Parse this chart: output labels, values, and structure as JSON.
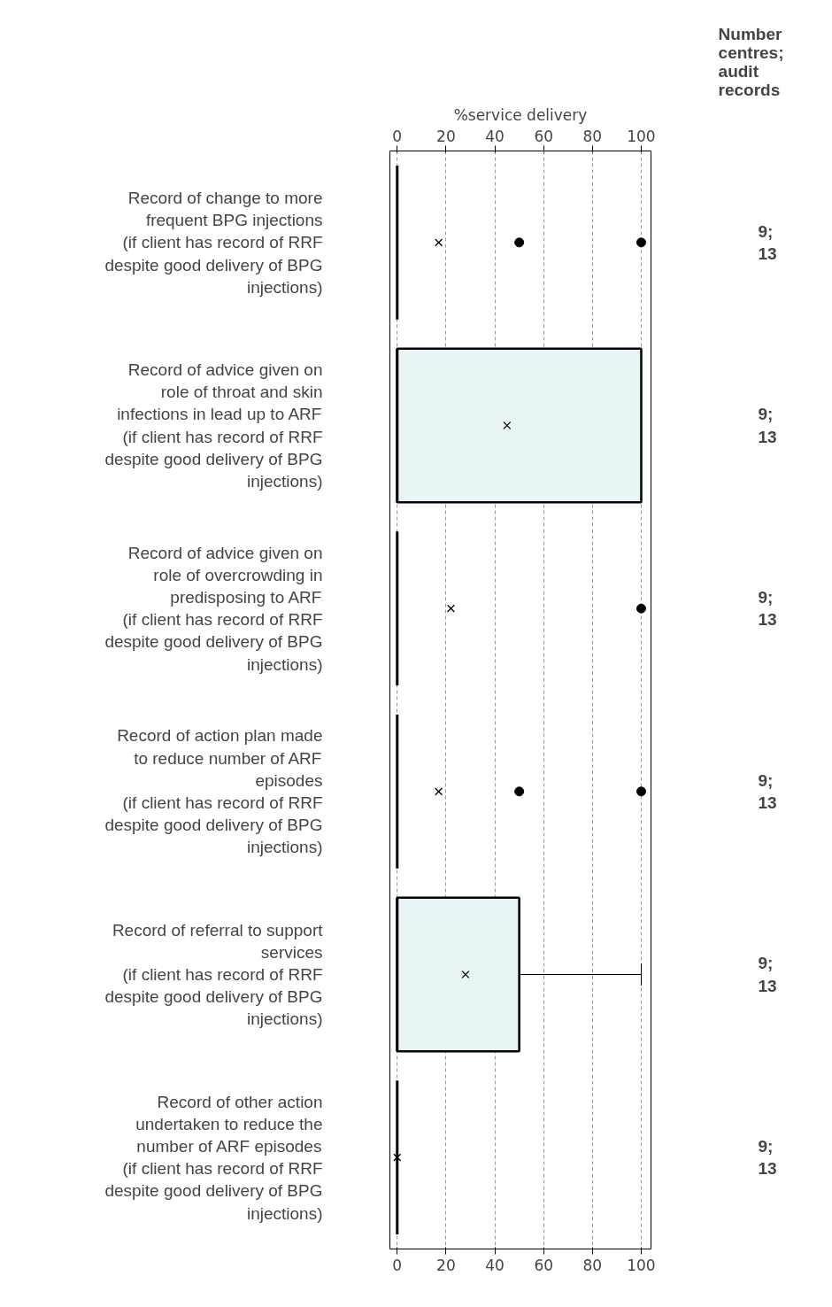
{
  "chart_data": {
    "type": "box",
    "orientation": "horizontal",
    "x2label": "%service delivery",
    "categories": [
      "Record of change to more\nfrequent BPG injections\n(if client has record of RRF\ndespite good delivery of BPG\ninjections)",
      "Record of advice given on\nrole of throat and skin\ninfections in lead up to ARF\n(if client has record of RRF\ndespite good delivery of BPG\ninjections)",
      "Record of advice given on\nrole of overcrowding in\npredisposing to ARF\n(if client has record of RRF\ndespite good delivery of BPG\ninjections)",
      "Record of action plan made\nto reduce number of ARF\nepisodes\n(if client has record of RRF\ndespite good delivery of BPG\ninjections)",
      "Record of referral to support\nservices\n(if client has record of RRF\ndespite good delivery of BPG\ninjections)",
      "Record of other action\nundertaken to reduce the\nnumber of ARF episodes\n(if client has record of RRF\ndespite good delivery of BPG\ninjections)"
    ],
    "boxes": [
      {
        "low": 0,
        "q1": 0,
        "median": 0,
        "q3": 0,
        "high": 0,
        "mean": 17,
        "outliers": [
          50,
          100
        ]
      },
      {
        "low": 0,
        "q1": 0,
        "median": 0,
        "q3": 100,
        "high": 100,
        "mean": 45
      },
      {
        "low": 0,
        "q1": 0,
        "median": 0,
        "q3": 0,
        "high": 0,
        "mean": 22,
        "outliers": [
          100
        ]
      },
      {
        "low": 0,
        "q1": 0,
        "median": 0,
        "q3": 0,
        "high": 0,
        "mean": 17,
        "outliers": [
          50,
          100
        ]
      },
      {
        "low": 0,
        "q1": 0,
        "median": 0,
        "q3": 50,
        "high": 100,
        "mean": 28
      },
      {
        "low": 0,
        "q1": 0,
        "median": 0,
        "q3": 0,
        "high": 0,
        "mean": 0
      }
    ],
    "color": "#e9f4f4",
    "xlim": [
      -3,
      104
    ],
    "xticks": [
      0,
      20,
      40,
      60,
      80,
      100
    ],
    "x2lim": [
      -3,
      104
    ],
    "x2ticks": [
      0,
      20,
      40,
      60,
      80,
      100
    ],
    "grid": "x",
    "annotations": [
      "Number\ncentres;\naudit\nrecords",
      "9;\n13",
      "9;\n13",
      "9;\n13",
      "9;\n13",
      "9;\n13",
      "9;\n13"
    ]
  }
}
